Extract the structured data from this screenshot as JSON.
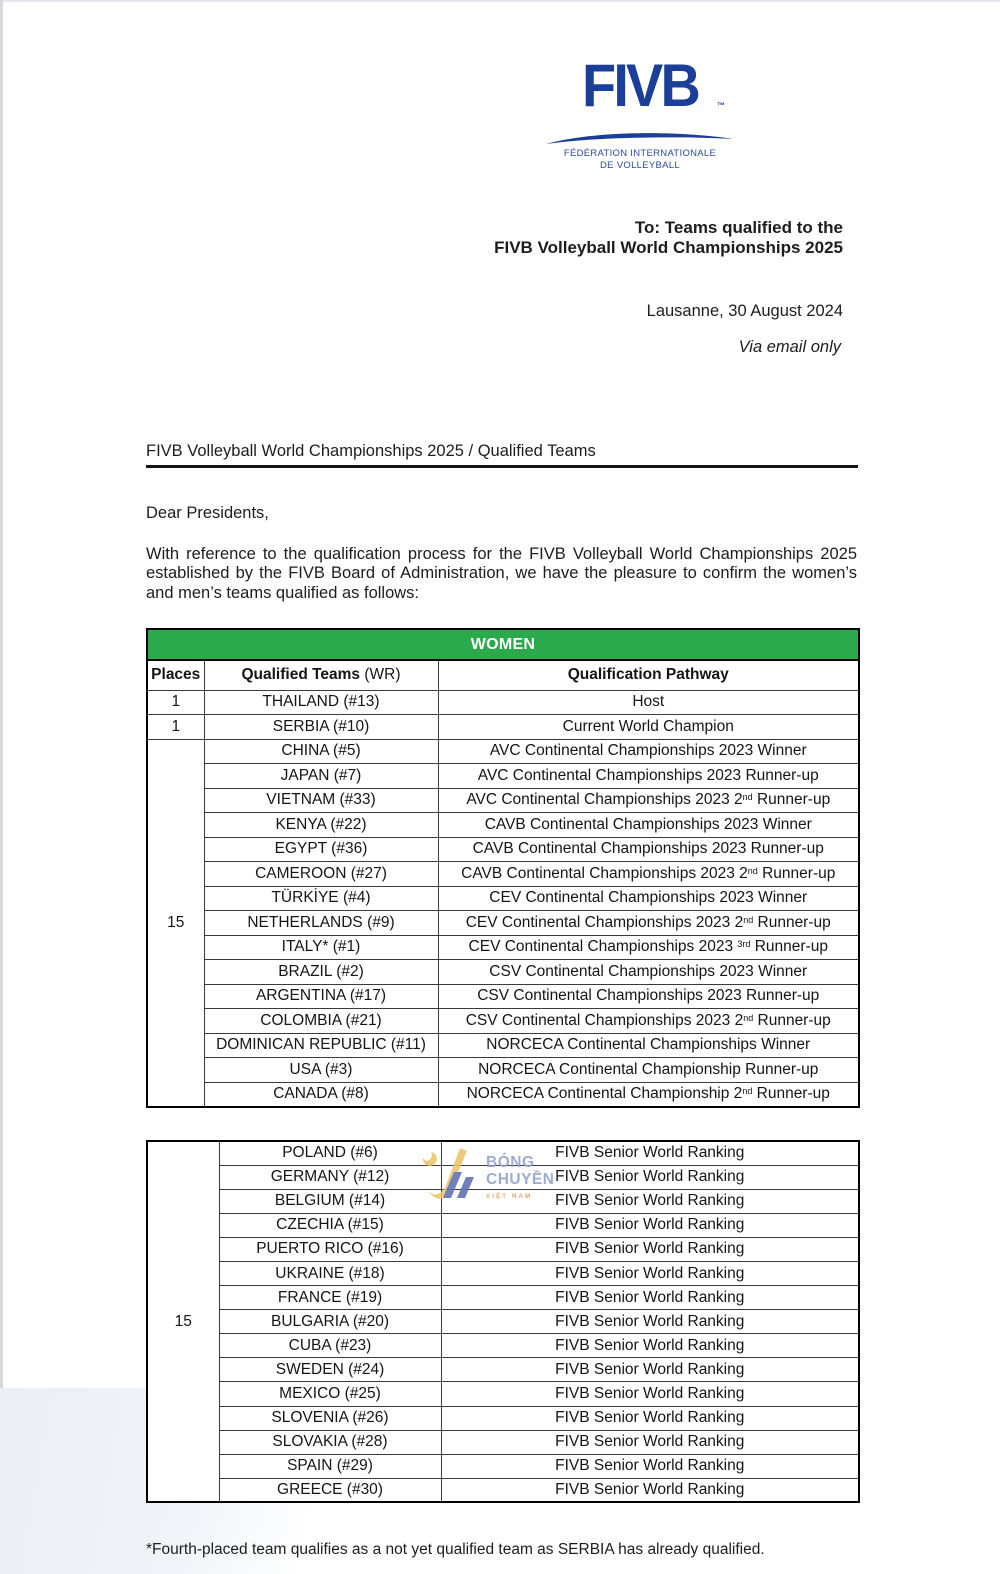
{
  "logo": {
    "brand": "FIVB",
    "tm": "™",
    "org_line1": "FÉDÉRATION INTERNATIONALE",
    "org_line2": "DE VOLLEYBALL"
  },
  "header": {
    "to_line1": "To: Teams qualified to the",
    "to_line2": "FIVB Volleyball World Championships 2025",
    "dateline": "Lausanne, 30 August 2024",
    "via": "Via email only"
  },
  "letter": {
    "subject": "FIVB Volleyball World Championships 2025 / Qualified Teams",
    "salutation": "Dear Presidents,",
    "body": "With reference to the qualification process for the FIVB Volleyball World Championships 2025 established by the FIVB Board of Administration, we have the pleasure to confirm the women’s and men’s teams qualified as follows:",
    "footnote": "*Fourth-placed team qualifies as a not yet qualified team as SERBIA has already qualified."
  },
  "tables": [
    {
      "title": "WOMEN",
      "columns": [
        {
          "bold": "Places"
        },
        {
          "bold": "Qualified Teams",
          "normal": " (WR)"
        },
        {
          "bold": "Qualification Pathway"
        }
      ],
      "groups": [
        {
          "places": "1",
          "rows": [
            {
              "team": "THAILAND (#13)",
              "pathway": "Host"
            }
          ]
        },
        {
          "places": "1",
          "rows": [
            {
              "team": "SERBIA (#10)",
              "pathway": "Current World Champion"
            }
          ]
        },
        {
          "places": "15",
          "rows": [
            {
              "team": "CHINA (#5)",
              "pathway": "AVC Continental Championships 2023 Winner"
            },
            {
              "team": "JAPAN (#7)",
              "pathway": "AVC Continental Championships 2023 Runner-up"
            },
            {
              "team": "VIETNAM (#33)",
              "pathway": "AVC Continental Championships 2023 2{nd} Runner-up"
            },
            {
              "team": "KENYA (#22)",
              "pathway": "CAVB Continental Championships 2023 Winner"
            },
            {
              "team": "EGYPT (#36)",
              "pathway": "CAVB Continental Championships 2023 Runner-up"
            },
            {
              "team": "CAMEROON (#27)",
              "pathway": "CAVB Continental Championships 2023 2{nd} Runner-up"
            },
            {
              "team": "TÜRKİYE (#4)",
              "pathway": "CEV Continental Championships 2023 Winner"
            },
            {
              "team": "NETHERLANDS (#9)",
              "pathway": "CEV Continental Championships 2023 2{nd} Runner-up"
            },
            {
              "team": "ITALY* (#1)",
              "pathway": "CEV Continental Championships 2023 {3rd} Runner-up"
            },
            {
              "team": "BRAZIL (#2)",
              "pathway": "CSV Continental Championships 2023 Winner"
            },
            {
              "team": "ARGENTINA (#17)",
              "pathway": "CSV Continental Championships 2023 Runner-up"
            },
            {
              "team": "COLOMBIA (#21)",
              "pathway": "CSV Continental Championships 2023 2{nd} Runner-up"
            },
            {
              "team": "DOMINICAN REPUBLIC (#11)",
              "pathway": "NORCECA Continental Championships Winner"
            },
            {
              "team": "USA (#3)",
              "pathway": "NORCECA Continental Championship Runner-up"
            },
            {
              "team": "CANADA (#8)",
              "pathway": "NORCECA Continental Championship 2{nd} Runner-up"
            }
          ]
        }
      ]
    },
    {
      "groups": [
        {
          "places": "15",
          "rows": [
            {
              "team": "POLAND (#6)",
              "pathway": "FIVB Senior World Ranking"
            },
            {
              "team": "GERMANY (#12)",
              "pathway": "FIVB Senior World Ranking"
            },
            {
              "team": "BELGIUM (#14)",
              "pathway": "FIVB Senior World Ranking"
            },
            {
              "team": "CZECHIA (#15)",
              "pathway": "FIVB Senior World Ranking"
            },
            {
              "team": "PUERTO RICO (#16)",
              "pathway": "FIVB Senior World Ranking"
            },
            {
              "team": "UKRAINE (#18)",
              "pathway": "FIVB Senior World Ranking"
            },
            {
              "team": "FRANCE (#19)",
              "pathway": "FIVB Senior World Ranking"
            },
            {
              "team": "BULGARIA (#20)",
              "pathway": "FIVB Senior World Ranking"
            },
            {
              "team": "CUBA (#23)",
              "pathway": "FIVB Senior World Ranking"
            },
            {
              "team": "SWEDEN (#24)",
              "pathway": "FIVB Senior World Ranking"
            },
            {
              "team": "MEXICO (#25)",
              "pathway": "FIVB Senior World Ranking"
            },
            {
              "team": "SLOVENIA (#26)",
              "pathway": "FIVB Senior World Ranking"
            },
            {
              "team": "SLOVAKIA (#28)",
              "pathway": "FIVB Senior World Ranking"
            },
            {
              "team": "SPAIN (#29)",
              "pathway": "FIVB Senior World Ranking"
            },
            {
              "team": "GREECE (#30)",
              "pathway": "FIVB Senior World Ranking"
            }
          ]
        }
      ]
    }
  ],
  "watermark": {
    "line1": "BÓNG",
    "line2": "CHUYỀN",
    "line3": "VIỆT NAM"
  },
  "colors": {
    "fivb_blue": "#1b3e99",
    "table_green": "#2baa4d",
    "watermark_blue": "#94a0cf",
    "watermark_yellow": "#ecc46a",
    "watermark_stripe_blue": "#5d6fb2",
    "watermark_orange": "#da9b52"
  }
}
